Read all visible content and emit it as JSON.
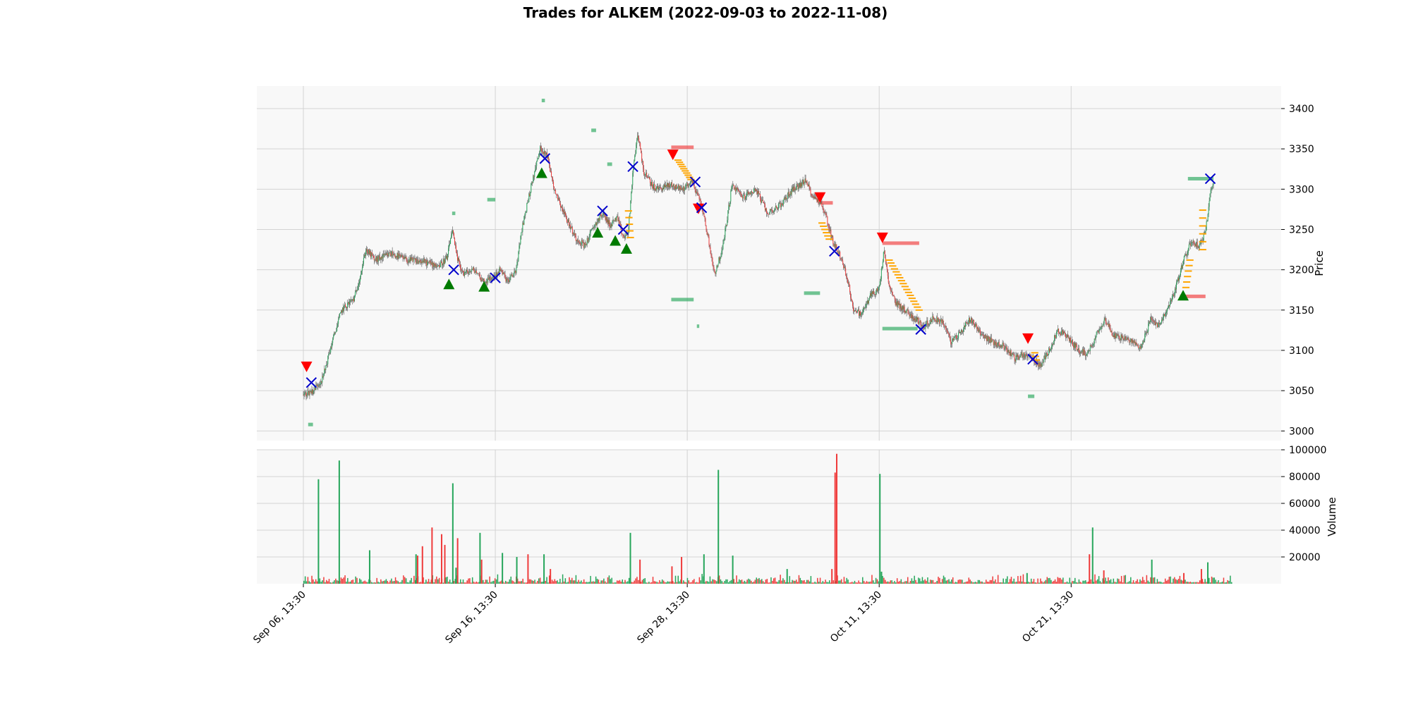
{
  "chart_data": {
    "type": "candlestick",
    "title": "Trades for ALKEM (2022-09-03 to 2022-11-08)",
    "price_axis": {
      "label": "Price",
      "ylim": [
        2988,
        3428
      ],
      "ticks": [
        3000,
        3050,
        3100,
        3150,
        3200,
        3250,
        3300,
        3350,
        3400
      ],
      "grid": true,
      "position": "right"
    },
    "volume_axis": {
      "label": "Volume",
      "ylim": [
        0,
        100000
      ],
      "ticks": [
        20000,
        40000,
        60000,
        80000,
        100000
      ],
      "grid": true,
      "position": "right"
    },
    "x_axis": {
      "xlim": [
        0,
        58
      ],
      "tick_positions": [
        0,
        12,
        24,
        36,
        48
      ],
      "tick_labels": [
        "Sep 06, 13:30",
        "Sep 16, 13:30",
        "Sep 28, 13:30",
        "Oct 11, 13:30",
        "Oct 21, 13:30"
      ],
      "grid": true
    },
    "colors": {
      "up": "#26a65b",
      "down": "#ef3b3b",
      "buy_marker": "#007a00",
      "sell_marker": "#ff0000",
      "exit_marker": "#0000cc",
      "level_line": "#ffa500",
      "panel_bg": "#f8f8f8",
      "grid": "#d3d3d3"
    },
    "price_path": [
      [
        0,
        3045
      ],
      [
        0.6,
        3050
      ],
      [
        1.2,
        3065
      ],
      [
        1.8,
        3110
      ],
      [
        2.4,
        3150
      ],
      [
        3.2,
        3165
      ],
      [
        3.7,
        3205
      ],
      [
        3.9,
        3225
      ],
      [
        4.5,
        3212
      ],
      [
        5.5,
        3220
      ],
      [
        6.5,
        3212
      ],
      [
        7.5,
        3210
      ],
      [
        8.5,
        3205
      ],
      [
        9.0,
        3215
      ],
      [
        9.3,
        3250
      ],
      [
        9.6,
        3215
      ],
      [
        10.0,
        3195
      ],
      [
        10.7,
        3200
      ],
      [
        11.3,
        3185
      ],
      [
        11.8,
        3190
      ],
      [
        12.3,
        3200
      ],
      [
        12.8,
        3185
      ],
      [
        13.3,
        3200
      ],
      [
        13.7,
        3255
      ],
      [
        14.2,
        3300
      ],
      [
        14.8,
        3350
      ],
      [
        15.2,
        3345
      ],
      [
        15.7,
        3300
      ],
      [
        16.3,
        3270
      ],
      [
        17.0,
        3240
      ],
      [
        17.6,
        3230
      ],
      [
        18.2,
        3255
      ],
      [
        18.7,
        3270
      ],
      [
        19.2,
        3255
      ],
      [
        19.6,
        3265
      ],
      [
        20.0,
        3240
      ],
      [
        20.3,
        3245
      ],
      [
        20.6,
        3320
      ],
      [
        20.9,
        3370
      ],
      [
        21.3,
        3320
      ],
      [
        22.0,
        3300
      ],
      [
        23.0,
        3305
      ],
      [
        23.7,
        3300
      ],
      [
        24.3,
        3310
      ],
      [
        24.9,
        3280
      ],
      [
        25.3,
        3240
      ],
      [
        25.7,
        3195
      ],
      [
        26.2,
        3225
      ],
      [
        26.8,
        3305
      ],
      [
        27.5,
        3290
      ],
      [
        28.3,
        3300
      ],
      [
        29.0,
        3270
      ],
      [
        29.8,
        3280
      ],
      [
        30.6,
        3300
      ],
      [
        31.4,
        3310
      ],
      [
        31.9,
        3290
      ],
      [
        32.3,
        3285
      ],
      [
        32.7,
        3265
      ],
      [
        33.1,
        3235
      ],
      [
        33.5,
        3220
      ],
      [
        34.0,
        3190
      ],
      [
        34.4,
        3150
      ],
      [
        34.9,
        3145
      ],
      [
        35.5,
        3170
      ],
      [
        36.0,
        3175
      ],
      [
        36.3,
        3225
      ],
      [
        36.6,
        3180
      ],
      [
        37.0,
        3160
      ],
      [
        37.6,
        3150
      ],
      [
        38.2,
        3140
      ],
      [
        38.8,
        3130
      ],
      [
        39.4,
        3140
      ],
      [
        40.0,
        3135
      ],
      [
        40.5,
        3110
      ],
      [
        41.0,
        3120
      ],
      [
        41.7,
        3140
      ],
      [
        42.4,
        3120
      ],
      [
        43.1,
        3110
      ],
      [
        43.8,
        3105
      ],
      [
        44.5,
        3090
      ],
      [
        45.0,
        3095
      ],
      [
        45.6,
        3090
      ],
      [
        46.1,
        3080
      ],
      [
        46.6,
        3100
      ],
      [
        47.2,
        3125
      ],
      [
        47.8,
        3115
      ],
      [
        48.5,
        3100
      ],
      [
        49.0,
        3095
      ],
      [
        49.6,
        3120
      ],
      [
        50.1,
        3140
      ],
      [
        50.6,
        3120
      ],
      [
        51.2,
        3115
      ],
      [
        51.8,
        3110
      ],
      [
        52.4,
        3105
      ],
      [
        53.0,
        3140
      ],
      [
        53.5,
        3130
      ],
      [
        54.0,
        3150
      ],
      [
        54.5,
        3175
      ],
      [
        55.0,
        3210
      ],
      [
        55.5,
        3235
      ],
      [
        56.0,
        3230
      ],
      [
        56.4,
        3245
      ],
      [
        56.7,
        3300
      ],
      [
        56.9,
        3310
      ]
    ],
    "volume_spikes": [
      [
        0.9,
        78000,
        "up"
      ],
      [
        2.2,
        92000,
        "up"
      ],
      [
        4.1,
        25000,
        "up"
      ],
      [
        7.0,
        22000,
        "up"
      ],
      [
        7.1,
        21000,
        "down"
      ],
      [
        7.4,
        28000,
        "down"
      ],
      [
        8.0,
        42000,
        "down"
      ],
      [
        8.6,
        37000,
        "down"
      ],
      [
        8.8,
        29000,
        "down"
      ],
      [
        9.3,
        75000,
        "up"
      ],
      [
        9.5,
        12000,
        "up"
      ],
      [
        9.6,
        34000,
        "down"
      ],
      [
        11.0,
        38000,
        "up"
      ],
      [
        11.1,
        18000,
        "down"
      ],
      [
        12.4,
        23000,
        "up"
      ],
      [
        13.3,
        20000,
        "up"
      ],
      [
        14.0,
        22000,
        "down"
      ],
      [
        15.0,
        22000,
        "up"
      ],
      [
        15.4,
        11000,
        "down"
      ],
      [
        20.4,
        38000,
        "up"
      ],
      [
        21.0,
        18000,
        "down"
      ],
      [
        23.0,
        13000,
        "down"
      ],
      [
        23.6,
        20000,
        "down"
      ],
      [
        25.0,
        22000,
        "up"
      ],
      [
        25.9,
        85000,
        "up"
      ],
      [
        26.8,
        21000,
        "up"
      ],
      [
        30.2,
        11000,
        "up"
      ],
      [
        33.0,
        11000,
        "down"
      ],
      [
        33.2,
        83000,
        "down"
      ],
      [
        33.3,
        97000,
        "down"
      ],
      [
        36.0,
        82000,
        "up"
      ],
      [
        36.1,
        9000,
        "up"
      ],
      [
        45.2,
        8000,
        "up"
      ],
      [
        49.1,
        22000,
        "down"
      ],
      [
        49.3,
        42000,
        "up"
      ],
      [
        50.0,
        10000,
        "down"
      ],
      [
        53.0,
        18000,
        "up"
      ],
      [
        55.0,
        8000,
        "down"
      ],
      [
        56.1,
        11000,
        "down"
      ],
      [
        56.5,
        16000,
        "up"
      ]
    ],
    "buy_markers": [
      [
        9.1,
        3182
      ],
      [
        11.3,
        3179
      ],
      [
        14.9,
        3320
      ],
      [
        18.4,
        3246
      ],
      [
        19.5,
        3236
      ],
      [
        20.2,
        3226
      ],
      [
        55.0,
        3168
      ]
    ],
    "sell_markers": [
      [
        0.2,
        3080
      ],
      [
        23.1,
        3343
      ],
      [
        24.7,
        3276
      ],
      [
        32.3,
        3290
      ],
      [
        36.2,
        3240
      ],
      [
        45.3,
        3115
      ]
    ],
    "exit_markers": [
      [
        0.5,
        3060
      ],
      [
        9.4,
        3200
      ],
      [
        12.0,
        3190
      ],
      [
        15.1,
        3338
      ],
      [
        18.7,
        3273
      ],
      [
        20.0,
        3250
      ],
      [
        20.6,
        3328
      ],
      [
        24.5,
        3309
      ],
      [
        24.9,
        3277
      ],
      [
        33.2,
        3223
      ],
      [
        38.6,
        3126
      ],
      [
        45.6,
        3089
      ],
      [
        56.7,
        3313
      ]
    ],
    "volume_profile_bars": [
      [
        0.3,
        3008,
        0.3,
        "up"
      ],
      [
        9.3,
        3270,
        0.2,
        "up"
      ],
      [
        11.5,
        3287,
        0.5,
        "up"
      ],
      [
        14.9,
        3410,
        0.2,
        "up"
      ],
      [
        18.0,
        3373,
        0.3,
        "up"
      ],
      [
        19.0,
        3331,
        0.3,
        "up"
      ],
      [
        23.0,
        3352,
        1.4,
        "down"
      ],
      [
        23.0,
        3163,
        1.4,
        "up"
      ],
      [
        24.6,
        3130,
        0.15,
        "up"
      ],
      [
        31.3,
        3171,
        1.0,
        "up"
      ],
      [
        32.3,
        3283,
        0.8,
        "down"
      ],
      [
        36.2,
        3233,
        2.3,
        "down"
      ],
      [
        36.2,
        3127,
        2.2,
        "up"
      ],
      [
        45.3,
        3043,
        0.4,
        "up"
      ],
      [
        54.8,
        3167,
        1.6,
        "down"
      ],
      [
        55.3,
        3313,
        1.6,
        "up"
      ]
    ],
    "level_ladders": [
      {
        "x": 23.2,
        "from": 3336,
        "to": 3312,
        "steps": 10,
        "dx": 0.09
      },
      {
        "x": 32.2,
        "from": 3258,
        "to": 3238,
        "steps": 6,
        "dx": 0.09
      },
      {
        "x": 36.4,
        "from": 3212,
        "to": 3150,
        "steps": 18,
        "dx": 0.11
      },
      {
        "x": 20.1,
        "from": 3273,
        "to": 3240,
        "steps": 5,
        "dx": 0.03
      },
      {
        "x": 45.5,
        "from": 3097,
        "to": 3088,
        "steps": 3,
        "dx": 0.05
      },
      {
        "x": 55.2,
        "from": 3212,
        "to": 3178,
        "steps": 6,
        "dx": -0.05
      },
      {
        "x": 56.0,
        "from": 3274,
        "to": 3225,
        "steps": 6,
        "dx": 0.0
      }
    ]
  }
}
